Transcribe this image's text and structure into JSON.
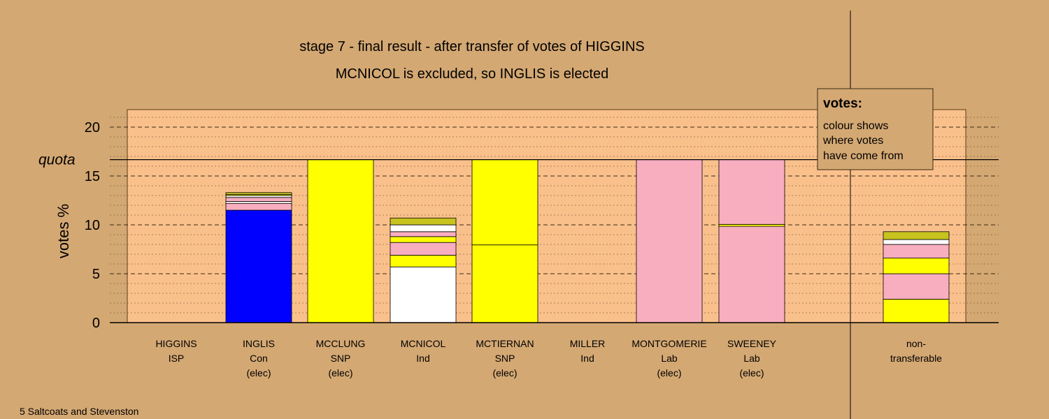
{
  "chart_data": {
    "type": "bar",
    "title": "stage 7 - final result - after transfer of votes of HIGGINS",
    "subtitle": "MCNICOL is excluded, so INGLIS is elected",
    "ylabel": "votes %",
    "ylim": [
      0,
      22
    ],
    "yticks": [
      0,
      5,
      10,
      15,
      20
    ],
    "quota": 16.67,
    "quota_label": "quota",
    "footer": "5 Saltcoats and Stevenston",
    "legend": {
      "title": "votes:",
      "lines": [
        "colour shows",
        "where votes",
        "have come from"
      ]
    },
    "colors": {
      "background": "#d4a873",
      "plot_area": "#fac08c",
      "blue": "#0000ff",
      "yellow": "#ffff00",
      "pink": "#f9aec0",
      "white": "#ffffff",
      "olive": "#c8c31e"
    },
    "candidates": [
      {
        "name": "HIGGINS",
        "party": "ISP",
        "status": "",
        "segments": []
      },
      {
        "name": "INGLIS",
        "party": "Con",
        "status": "(elec)",
        "segments": [
          {
            "color": "blue",
            "value": 11.5
          },
          {
            "color": "pink",
            "value": 0.7
          },
          {
            "color": "white",
            "value": 0.2
          },
          {
            "color": "pink",
            "value": 0.4
          },
          {
            "color": "white",
            "value": 0.2
          },
          {
            "color": "yellow",
            "value": 0.1
          },
          {
            "color": "olive",
            "value": 0.2
          }
        ]
      },
      {
        "name": "MCCLUNG",
        "party": "SNP",
        "status": "(elec)",
        "segments": [
          {
            "color": "yellow",
            "value": 16.67
          }
        ]
      },
      {
        "name": "MCNICOL",
        "party": "Ind",
        "status": "",
        "segments": [
          {
            "color": "white",
            "value": 5.7
          },
          {
            "color": "yellow",
            "value": 1.2
          },
          {
            "color": "pink",
            "value": 1.3
          },
          {
            "color": "yellow",
            "value": 0.6
          },
          {
            "color": "pink",
            "value": 0.5
          },
          {
            "color": "white",
            "value": 0.7
          },
          {
            "color": "olive",
            "value": 0.7
          }
        ]
      },
      {
        "name": "MCTIERNAN",
        "party": "SNP",
        "status": "(elec)",
        "segments": [
          {
            "color": "yellow",
            "value": 7.95
          },
          {
            "color": "yellow",
            "value": 8.72
          }
        ]
      },
      {
        "name": "MILLER",
        "party": "Ind",
        "status": "",
        "segments": []
      },
      {
        "name": "MONTGOMERIE",
        "party": "Lab",
        "status": "(elec)",
        "segments": [
          {
            "color": "pink",
            "value": 16.67
          }
        ]
      },
      {
        "name": "SWEENEY",
        "party": "Lab",
        "status": "(elec)",
        "segments": [
          {
            "color": "pink",
            "value": 9.85
          },
          {
            "color": "yellow",
            "value": 0.2
          },
          {
            "color": "pink",
            "value": 6.62
          }
        ]
      }
    ],
    "nontransferable": {
      "label_line1": "non-",
      "label_line2": "transferable",
      "segments": [
        {
          "color": "yellow",
          "value": 2.4
        },
        {
          "color": "pink",
          "value": 2.6
        },
        {
          "color": "yellow",
          "value": 1.6
        },
        {
          "color": "pink",
          "value": 1.4
        },
        {
          "color": "white",
          "value": 0.5
        },
        {
          "color": "olive",
          "value": 0.8
        }
      ]
    }
  }
}
